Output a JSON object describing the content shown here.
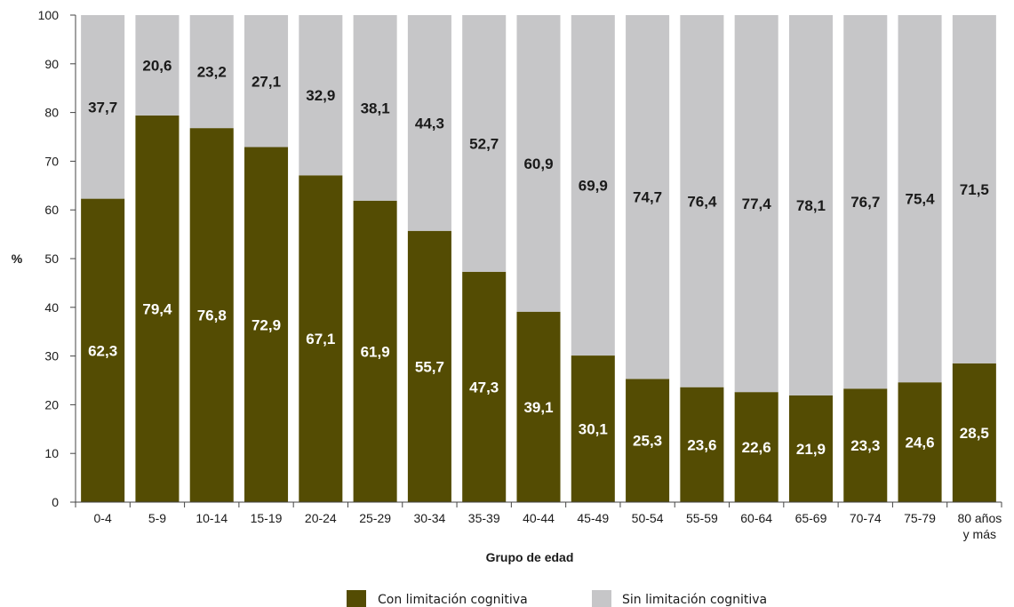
{
  "chart_data": {
    "type": "bar",
    "stacked": true,
    "categories": [
      "0-4",
      "5-9",
      "10-14",
      "15-19",
      "20-24",
      "25-29",
      "30-34",
      "35-39",
      "40-44",
      "45-49",
      "50-54",
      "55-59",
      "60-64",
      "65-69",
      "70-74",
      "75-79",
      "80 años y más"
    ],
    "category_lines": [
      [
        "0-4"
      ],
      [
        "5-9"
      ],
      [
        "10-14"
      ],
      [
        "15-19"
      ],
      [
        "20-24"
      ],
      [
        "25-29"
      ],
      [
        "30-34"
      ],
      [
        "35-39"
      ],
      [
        "40-44"
      ],
      [
        "45-49"
      ],
      [
        "50-54"
      ],
      [
        "55-59"
      ],
      [
        "60-64"
      ],
      [
        "65-69"
      ],
      [
        "70-74"
      ],
      [
        "75-79"
      ],
      [
        "80 años",
        "y más"
      ]
    ],
    "series": [
      {
        "name": "Con limitación cognitiva",
        "color": "#544c03",
        "label_color": "#ffffff",
        "values": [
          62.3,
          79.4,
          76.8,
          72.9,
          67.1,
          61.9,
          55.7,
          47.3,
          39.1,
          30.1,
          25.3,
          23.6,
          22.6,
          21.9,
          23.3,
          24.6,
          28.5
        ],
        "labels": [
          "62,3",
          "79,4",
          "76,8",
          "72,9",
          "67,1",
          "61,9",
          "55,7",
          "47,3",
          "39,1",
          "30,1",
          "25,3",
          "23,6",
          "22,6",
          "21,9",
          "23,3",
          "24,6",
          "28,5"
        ]
      },
      {
        "name": "Sin limitación cognitiva",
        "color": "#c6c6c8",
        "label_color": "#1a1a1a",
        "values": [
          37.7,
          20.6,
          23.2,
          27.1,
          32.9,
          38.1,
          44.3,
          52.7,
          60.9,
          69.9,
          74.7,
          76.4,
          77.4,
          78.1,
          76.7,
          75.4,
          71.5
        ],
        "labels": [
          "37,7",
          "20,6",
          "23,2",
          "27,1",
          "32,9",
          "38,1",
          "44,3",
          "52,7",
          "60,9",
          "69,9",
          "74,7",
          "76,4",
          "77,4",
          "78,1",
          "76,7",
          "75,4",
          "71,5"
        ]
      }
    ],
    "xlabel": "Grupo de edad",
    "ylabel": "%",
    "ylim": [
      0,
      100
    ],
    "yticks": [
      0,
      10,
      20,
      30,
      40,
      50,
      60,
      70,
      80,
      90,
      100
    ],
    "grid": false,
    "legend_position": "bottom"
  }
}
